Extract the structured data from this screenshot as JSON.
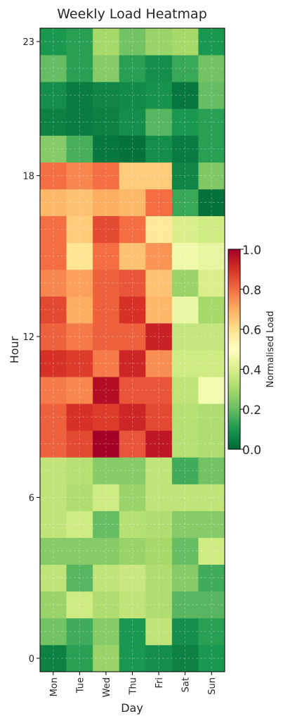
{
  "chart_data": {
    "type": "heatmap",
    "title": "Weekly Load Heatmap",
    "xlabel": "Day",
    "ylabel": "Hour",
    "days": [
      "Mon",
      "Tue",
      "Wed",
      "Thu",
      "Fri",
      "Sat",
      "Sun"
    ],
    "hours": [
      0,
      1,
      2,
      3,
      4,
      5,
      6,
      7,
      8,
      9,
      10,
      11,
      12,
      13,
      14,
      15,
      16,
      17,
      18,
      19,
      20,
      21,
      22,
      23
    ],
    "y_ticks": [
      0,
      6,
      12,
      18,
      23
    ],
    "grid": true,
    "colorbar": {
      "label": "Normalised Load",
      "range": [
        0.0,
        1.0
      ],
      "ticks": [
        "0.0",
        "0.2",
        "0.4",
        "0.6",
        "0.8",
        "1.0"
      ],
      "colormap": "RdYlGn_r"
    },
    "values": [
      [
        0.05,
        0.12,
        0.28,
        0.1,
        0.08,
        0.05,
        0.1
      ],
      [
        0.22,
        0.15,
        0.25,
        0.1,
        0.35,
        0.08,
        0.12
      ],
      [
        0.28,
        0.38,
        0.32,
        0.35,
        0.32,
        0.18,
        0.18
      ],
      [
        0.35,
        0.18,
        0.35,
        0.37,
        0.32,
        0.25,
        0.15
      ],
      [
        0.25,
        0.25,
        0.25,
        0.28,
        0.3,
        0.2,
        0.38
      ],
      [
        0.35,
        0.38,
        0.2,
        0.33,
        0.32,
        0.25,
        0.25
      ],
      [
        0.35,
        0.32,
        0.38,
        0.28,
        0.35,
        0.35,
        0.35
      ],
      [
        0.35,
        0.33,
        0.25,
        0.25,
        0.35,
        0.15,
        0.22
      ],
      [
        0.82,
        0.86,
        1.0,
        0.84,
        0.95,
        0.33,
        0.32
      ],
      [
        0.82,
        0.9,
        0.88,
        0.92,
        0.86,
        0.33,
        0.32
      ],
      [
        0.78,
        0.76,
        0.97,
        0.84,
        0.84,
        0.35,
        0.47
      ],
      [
        0.9,
        0.88,
        0.78,
        0.92,
        0.75,
        0.38,
        0.38
      ],
      [
        0.82,
        0.78,
        0.82,
        0.82,
        0.93,
        0.36,
        0.36
      ],
      [
        0.86,
        0.7,
        0.82,
        0.9,
        0.68,
        0.45,
        0.3
      ],
      [
        0.76,
        0.72,
        0.82,
        0.84,
        0.66,
        0.28,
        0.4
      ],
      [
        0.8,
        0.58,
        0.8,
        0.66,
        0.74,
        0.46,
        0.44
      ],
      [
        0.8,
        0.64,
        0.86,
        0.8,
        0.57,
        0.4,
        0.38
      ],
      [
        0.68,
        0.66,
        0.7,
        0.68,
        0.8,
        0.14,
        0.02
      ],
      [
        0.8,
        0.76,
        0.8,
        0.64,
        0.64,
        0.06,
        0.24
      ],
      [
        0.25,
        0.16,
        0.03,
        0.02,
        0.08,
        0.04,
        0.12
      ],
      [
        0.05,
        0.04,
        0.05,
        0.08,
        0.18,
        0.1,
        0.12
      ],
      [
        0.08,
        0.04,
        0.06,
        0.07,
        0.09,
        0.03,
        0.2
      ],
      [
        0.2,
        0.12,
        0.25,
        0.12,
        0.08,
        0.14,
        0.22
      ],
      [
        0.1,
        0.12,
        0.3,
        0.22,
        0.28,
        0.3,
        0.1
      ]
    ]
  }
}
